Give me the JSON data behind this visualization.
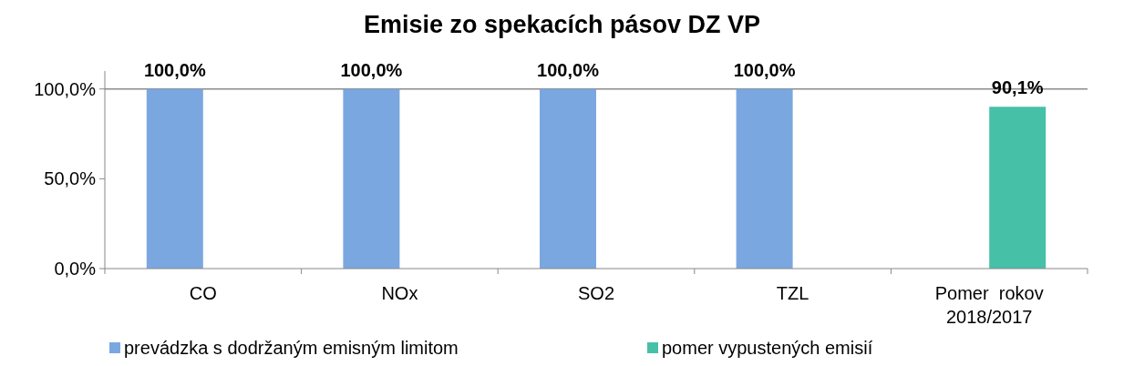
{
  "chart_data": {
    "type": "bar",
    "title": "Emisie zo spekacích pásov DZ VP",
    "categories": [
      "CO",
      "NOx",
      "SO2",
      "TZL",
      "Pomer  rokov 2018/2017"
    ],
    "series": [
      {
        "name": "prevádzka s dodržaným emisným limitom",
        "color": "#7ba7e0",
        "values": [
          100,
          100,
          100,
          100,
          null
        ],
        "value_labels": [
          "100,0%",
          "100,0%",
          "100,0%",
          "100,0%",
          null
        ]
      },
      {
        "name": "pomer vypustených emisií",
        "color": "#47c0a8",
        "values": [
          null,
          null,
          null,
          null,
          90.1
        ],
        "value_labels": [
          null,
          null,
          null,
          null,
          "90,1%"
        ]
      }
    ],
    "ylim": [
      0,
      110
    ],
    "yticks": [
      {
        "value": 0,
        "label": "0,0%"
      },
      {
        "value": 50,
        "label": "50,0%"
      },
      {
        "value": 100,
        "label": "100,0%"
      }
    ],
    "ref_lines": [
      {
        "axis": "y",
        "value": 100,
        "color": "#8c8c8c"
      }
    ],
    "legend": "bottom"
  }
}
